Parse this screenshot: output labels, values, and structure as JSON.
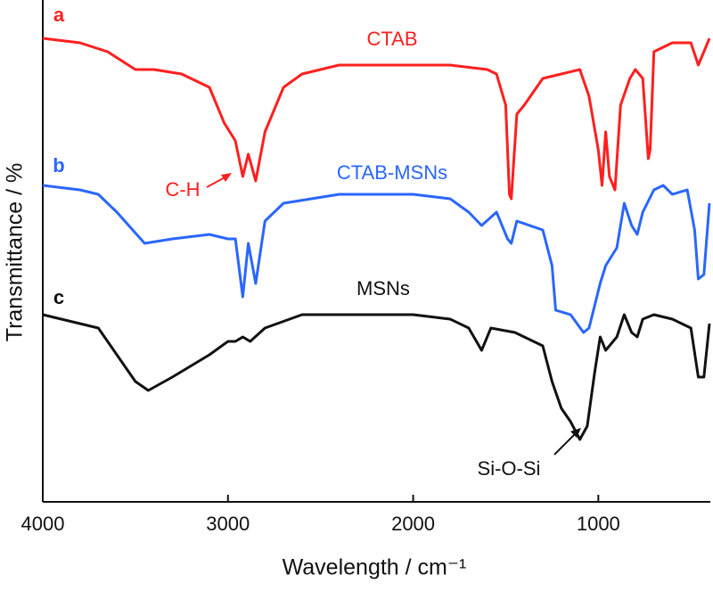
{
  "chart_data": {
    "type": "line",
    "xlabel": "Wavelength / cm⁻¹",
    "ylabel": "Transmittance / %",
    "xlim": [
      4000,
      400
    ],
    "xticks": [
      4000,
      3000,
      2000,
      1000
    ],
    "ylim": [
      0,
      112
    ],
    "series": [
      {
        "name": "CTAB",
        "label": "a",
        "color": "#ff1f1f",
        "x": [
          4000,
          3800,
          3650,
          3500,
          3400,
          3250,
          3100,
          3020,
          2990,
          2960,
          2920,
          2890,
          2850,
          2800,
          2700,
          2600,
          2400,
          2200,
          2000,
          1800,
          1600,
          1550,
          1500,
          1480,
          1470,
          1440,
          1400,
          1300,
          1200,
          1100,
          1050,
          1000,
          980,
          960,
          940,
          910,
          880,
          830,
          800,
          760,
          730,
          720,
          700,
          600,
          500,
          460,
          430,
          400
        ],
        "values": [
          104,
          103,
          101,
          97,
          97,
          96,
          93,
          85,
          83,
          81,
          73,
          78,
          72,
          83,
          93,
          96,
          98,
          98,
          98,
          98,
          97,
          96,
          89,
          69,
          68,
          87,
          89,
          95,
          96,
          97,
          91,
          79,
          71,
          83,
          73,
          70,
          89,
          95,
          97,
          95,
          77,
          79,
          101,
          103,
          103,
          98,
          101,
          104
        ]
      },
      {
        "name": "CTAB-MSNs",
        "label": "b",
        "color": "#2a66ff",
        "x": [
          4000,
          3800,
          3700,
          3600,
          3450,
          3300,
          3100,
          3000,
          2960,
          2920,
          2890,
          2850,
          2800,
          2700,
          2400,
          2000,
          1800,
          1700,
          1630,
          1550,
          1490,
          1470,
          1440,
          1300,
          1250,
          1230,
          1150,
          1080,
          1050,
          990,
          960,
          900,
          860,
          820,
          790,
          760,
          700,
          650,
          600,
          520,
          480,
          460,
          430,
          400
        ],
        "values": [
          71,
          70,
          69,
          65,
          58,
          59,
          60,
          59,
          59,
          46,
          58,
          49,
          63,
          67,
          69,
          69,
          68,
          65,
          62,
          65,
          59,
          58,
          63,
          61,
          53,
          43,
          42,
          38,
          39,
          49,
          53,
          57,
          67,
          62,
          60,
          65,
          70,
          71,
          69,
          70,
          61,
          50,
          51,
          67
        ]
      },
      {
        "name": "MSNs",
        "label": "c",
        "color": "#111111",
        "x": [
          4000,
          3800,
          3700,
          3600,
          3500,
          3430,
          3300,
          3100,
          3000,
          2960,
          2920,
          2880,
          2800,
          2600,
          2400,
          2000,
          1800,
          1700,
          1630,
          1580,
          1450,
          1300,
          1250,
          1200,
          1150,
          1100,
          1060,
          1020,
          990,
          960,
          900,
          860,
          820,
          790,
          760,
          700,
          600,
          500,
          460,
          430,
          400
        ],
        "values": [
          42,
          40,
          39,
          33,
          27,
          25,
          28,
          33,
          36,
          36,
          37,
          36,
          39,
          42,
          42,
          42,
          41,
          39,
          34,
          39,
          38,
          35,
          27,
          21,
          18,
          14,
          17,
          29,
          37,
          34,
          37,
          42,
          38,
          37,
          41,
          42,
          41,
          39,
          28,
          28,
          40
        ]
      }
    ],
    "annotations": [
      {
        "text": "C-H",
        "color": "#ff1f1f"
      },
      {
        "text": "Si-O-Si",
        "color": "#111111"
      }
    ]
  }
}
